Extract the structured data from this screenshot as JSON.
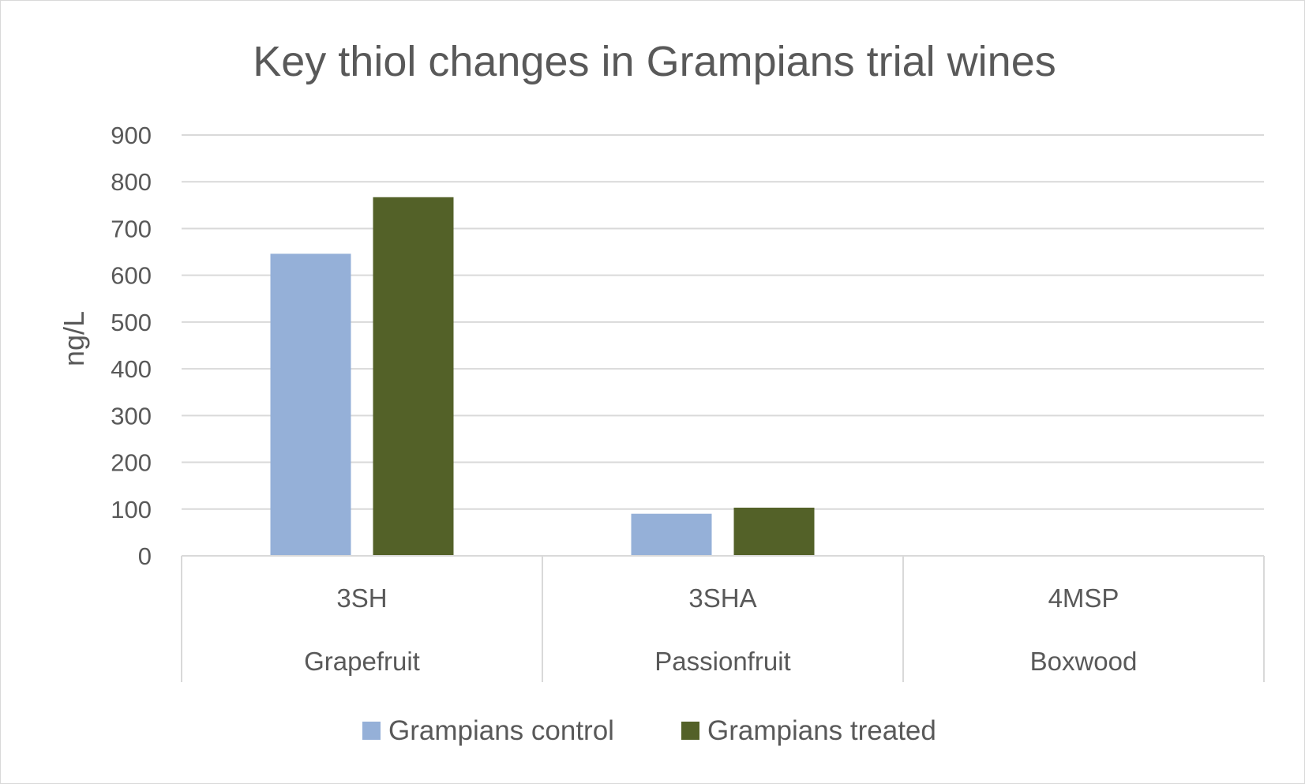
{
  "chart_data": {
    "type": "bar",
    "title": "Key thiol changes in Grampians trial wines",
    "xlabel": "",
    "ylabel": "ng/L",
    "ylim": [
      0,
      900
    ],
    "yticks": [
      "0",
      "100",
      "200",
      "300",
      "400",
      "500",
      "600",
      "700",
      "800",
      "900"
    ],
    "categories": [
      "3SH",
      "3SHA",
      "4MSP"
    ],
    "category_groups": [
      "Grapefruit",
      "Passionfruit",
      "Boxwood"
    ],
    "series": [
      {
        "name": "Grampians control",
        "color": "#95b0d8",
        "values": [
          646,
          90,
          0
        ]
      },
      {
        "name": "Grampians treated",
        "color": "#536128",
        "values": [
          767,
          103,
          0
        ]
      }
    ],
    "grid": true,
    "legend_position": "bottom"
  }
}
